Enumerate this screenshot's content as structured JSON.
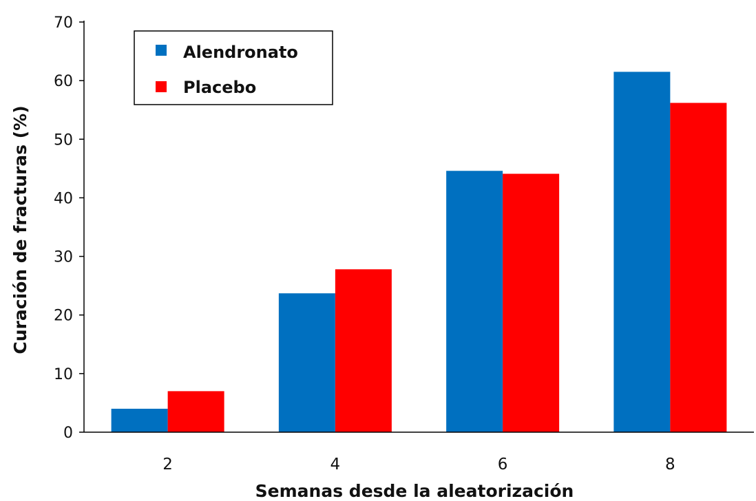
{
  "chart_data": {
    "type": "bar",
    "title": "",
    "xlabel": "Semanas desde la aleatorización",
    "ylabel": "Curación de fracturas (%)",
    "categories": [
      "2",
      "4",
      "6",
      "8"
    ],
    "ylim": [
      0,
      70
    ],
    "yticks": [
      0,
      10,
      20,
      30,
      40,
      50,
      60,
      70
    ],
    "grid": false,
    "legend_position": "top-left",
    "series": [
      {
        "name": "Alendronato",
        "color": "#0070C0",
        "values": [
          4,
          23.7,
          44.6,
          61.5
        ]
      },
      {
        "name": "Placebo",
        "color": "#FF0000",
        "values": [
          7,
          27.8,
          44.1,
          56.2
        ]
      }
    ]
  }
}
